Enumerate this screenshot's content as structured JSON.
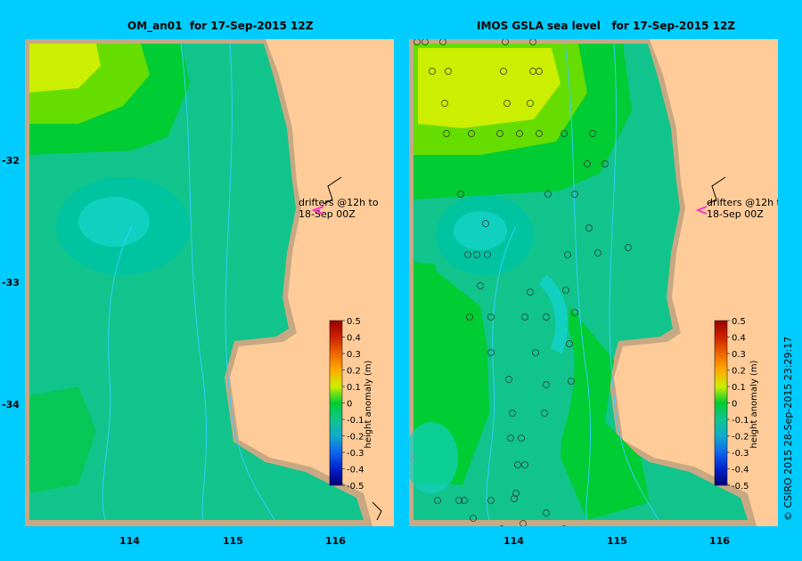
{
  "left_title": "OM_an01  for 17-Sep-2015 12Z",
  "right_title": "IMOS GSLA sea level   for 17-Sep-2015 12Z",
  "lat_labels": [
    "-32",
    "-33",
    "-34"
  ],
  "lon_labels": [
    "114",
    "115",
    "116"
  ],
  "drifter_note": {
    "line1": "drifters @12h to",
    "line2": "18-Sep 00Z"
  },
  "colorbar": {
    "label": "height anomaly (m)",
    "ticks": [
      "0.5",
      "0.4",
      "0.3",
      "0.2",
      "0.1",
      "0",
      "-0.1",
      "-0.2",
      "-0.3",
      "-0.4",
      "-0.5"
    ]
  },
  "copyright": "© CSIRO 2015   28-Sep-2015 23:29:17",
  "colors": {
    "background": "#00ccff",
    "land": "#ffcc99",
    "shelf": "#c8a882",
    "ocean": "#11c48c",
    "drifter": "#ff33cc"
  }
}
